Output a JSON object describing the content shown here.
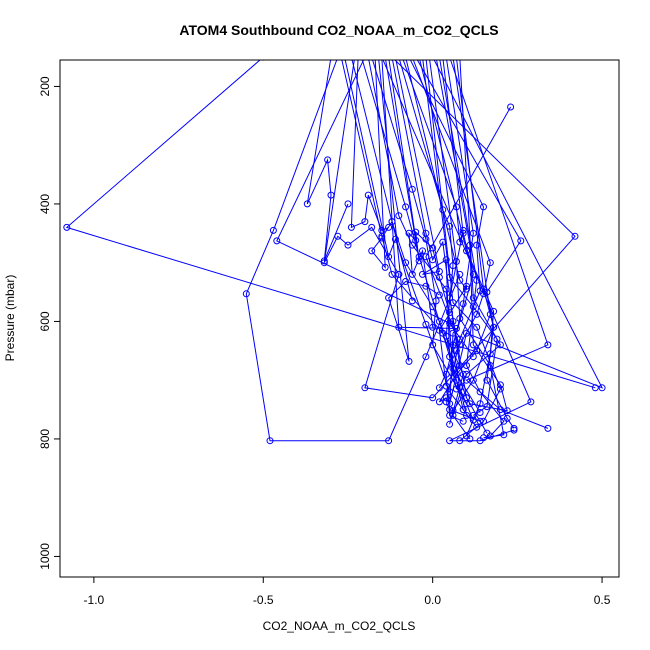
{
  "chart_data": {
    "type": "line",
    "title": "ATOM4 Southbound CO2_NOAA_m_CO2_QCLS",
    "xlabel": "CO2_NOAA_m_CO2_QCLS",
    "ylabel": "Pressure (mbar)",
    "xlim": [
      -1.1,
      0.55
    ],
    "ylim": [
      1035,
      155
    ],
    "y_reversed": true,
    "x_ticks": [
      -1.0,
      -0.5,
      0.0,
      0.5
    ],
    "x_tick_labels": [
      "-1.0",
      "-0.5",
      "0.0",
      "0.5"
    ],
    "y_ticks": [
      200,
      400,
      600,
      800,
      1000
    ],
    "y_tick_labels": [
      "200",
      "400",
      "600",
      "800",
      "1000"
    ],
    "grid": false,
    "series_color": "#0000ff",
    "series": [
      {
        "x": [
          -0.5,
          -1.08,
          0.48
        ],
        "y": [
          150,
          440,
          713
        ]
      },
      {
        "x": [
          -0.28,
          -0.47,
          -0.55,
          -0.48,
          -0.13,
          -0.02,
          0.08
        ],
        "y": [
          150,
          445,
          553,
          803,
          803,
          660,
          520
        ]
      },
      {
        "x": [
          -0.2,
          -0.46,
          0.05,
          0.12
        ],
        "y": [
          150,
          463,
          603,
          660
        ]
      },
      {
        "x": [
          0.0,
          0.5,
          0.1,
          0.05
        ],
        "y": [
          150,
          713,
          620,
          740
        ]
      },
      {
        "x": [
          -0.12,
          0.42,
          0.0,
          -0.2,
          -0.1
        ],
        "y": [
          150,
          455,
          730,
          713,
          520
        ]
      },
      {
        "x": [
          0.23,
          -0.02,
          0.08
        ],
        "y": [
          235,
          490,
          640
        ]
      },
      {
        "x": [
          0.05,
          0.34,
          0.1,
          0.2,
          0.34
        ],
        "y": [
          150,
          640,
          700,
          750,
          782
        ]
      },
      {
        "x": [
          -0.15,
          0.29,
          0.05,
          0.14,
          0.24
        ],
        "y": [
          150,
          737,
          803,
          803,
          785
        ]
      },
      {
        "x": [
          -0.3,
          -0.37,
          -0.31,
          -0.3,
          -0.32,
          -0.25
        ],
        "y": [
          150,
          400,
          325,
          385,
          497,
          400
        ]
      },
      {
        "x": [
          -0.23,
          -0.32,
          -0.28,
          -0.25,
          -0.18,
          -0.1
        ],
        "y": [
          150,
          500,
          455,
          470,
          440,
          520
        ]
      },
      {
        "x": [
          -0.22,
          -0.24,
          -0.2,
          -0.19,
          -0.15,
          -0.13
        ],
        "y": [
          150,
          440,
          430,
          385,
          445,
          440
        ]
      },
      {
        "x": [
          -0.17,
          -0.14,
          -0.18,
          -0.15,
          -0.12,
          -0.06
        ],
        "y": [
          150,
          508,
          480,
          458,
          430,
          565
        ]
      },
      {
        "x": [
          -0.16,
          -0.07,
          -0.13,
          -0.08,
          -0.02,
          0.02
        ],
        "y": [
          150,
          668,
          560,
          532,
          540,
          555
        ]
      },
      {
        "x": [
          -0.14,
          -0.05,
          -0.07,
          -0.06,
          -0.03,
          0.0
        ],
        "y": [
          150,
          462,
          450,
          520,
          480,
          610
        ]
      },
      {
        "x": [
          -0.13,
          -0.04,
          -0.05,
          0.0,
          0.02,
          0.05
        ],
        "y": [
          150,
          497,
          448,
          475,
          525,
          585
        ]
      },
      {
        "x": [
          -0.12,
          -0.02,
          0.0,
          0.03,
          0.06,
          0.08
        ],
        "y": [
          150,
          450,
          495,
          465,
          600,
          675
        ]
      },
      {
        "x": [
          -0.11,
          0.02,
          -0.03,
          0.04,
          0.05,
          0.07
        ],
        "y": [
          150,
          515,
          520,
          495,
          660,
          715
        ]
      },
      {
        "x": [
          -0.1,
          0.03,
          0.05,
          0.06,
          0.04,
          0.09
        ],
        "y": [
          150,
          410,
          438,
          505,
          625,
          750
        ]
      },
      {
        "x": [
          -0.09,
          0.07,
          0.08,
          0.09,
          0.05,
          0.1
        ],
        "y": [
          150,
          405,
          465,
          445,
          560,
          730
        ]
      },
      {
        "x": [
          -0.08,
          0.08,
          0.1,
          0.1,
          0.02,
          0.04
        ],
        "y": [
          150,
          530,
          545,
          540,
          615,
          710
        ]
      },
      {
        "x": [
          -0.07,
          0.15,
          0.13,
          0.14,
          0.08,
          0.04
        ],
        "y": [
          150,
          405,
          470,
          548,
          630,
          737
        ]
      },
      {
        "x": [
          -0.06,
          0.17,
          0.15,
          0.13,
          0.07,
          0.02
        ],
        "y": [
          150,
          500,
          553,
          588,
          650,
          713
        ]
      },
      {
        "x": [
          -0.05,
          0.26,
          0.16,
          0.18,
          0.12,
          0.06
        ],
        "y": [
          150,
          463,
          550,
          610,
          700,
          752
        ]
      },
      {
        "x": [
          -0.04,
          0.1,
          0.18,
          0.17,
          0.14,
          0.1
        ],
        "y": [
          150,
          480,
          583,
          655,
          740,
          795
        ]
      },
      {
        "x": [
          -0.03,
          0.05,
          0.12,
          0.19,
          0.16,
          0.12
        ],
        "y": [
          150,
          525,
          575,
          630,
          745,
          760
        ]
      },
      {
        "x": [
          -0.02,
          0.06,
          0.13,
          0.2,
          0.15,
          0.08
        ],
        "y": [
          150,
          568,
          610,
          715,
          770,
          803
        ]
      },
      {
        "x": [
          -0.01,
          0.07,
          0.08,
          0.17,
          0.21,
          0.15
        ],
        "y": [
          150,
          498,
          595,
          675,
          793,
          798
        ]
      },
      {
        "x": [
          0.01,
          0.11,
          0.12,
          0.2,
          0.22,
          0.11
        ],
        "y": [
          150,
          470,
          640,
          708,
          752,
          740
        ]
      },
      {
        "x": [
          0.02,
          0.13,
          0.1,
          0.14,
          0.21,
          0.17
        ],
        "y": [
          150,
          530,
          675,
          720,
          770,
          795
        ]
      },
      {
        "x": [
          0.03,
          0.09,
          0.12,
          0.06,
          0.08,
          0.1
        ],
        "y": [
          150,
          450,
          520,
          640,
          713,
          760
        ]
      },
      {
        "x": [
          0.04,
          0.12,
          0.09,
          0.04,
          0.05,
          0.09
        ],
        "y": [
          150,
          450,
          570,
          690,
          760,
          770
        ]
      },
      {
        "x": [
          0.06,
          0.17,
          0.13,
          0.07,
          0.02,
          0.04
        ],
        "y": [
          150,
          588,
          650,
          690,
          737,
          730
        ]
      },
      {
        "x": [
          -0.18,
          -0.06,
          -0.02,
          0.01,
          0.0,
          0.1
        ],
        "y": [
          150,
          375,
          460,
          565,
          640,
          740
        ]
      },
      {
        "x": [
          -0.19,
          -0.1,
          -0.06,
          0.04,
          0.06,
          0.14
        ],
        "y": [
          150,
          420,
          470,
          545,
          680,
          755
        ]
      },
      {
        "x": [
          -0.21,
          -0.08,
          -0.04,
          0.02,
          0.07,
          0.12
        ],
        "y": [
          150,
          405,
          490,
          600,
          700,
          768
        ]
      },
      {
        "x": [
          -0.24,
          -0.12,
          -0.08,
          0.0,
          0.09,
          0.05
        ],
        "y": [
          150,
          430,
          500,
          575,
          690,
          775
        ]
      },
      {
        "x": [
          -0.26,
          -0.13,
          -0.11,
          -0.02,
          0.05,
          0.13
        ],
        "y": [
          150,
          490,
          460,
          605,
          720,
          780
        ]
      },
      {
        "x": [
          -0.27,
          -0.15,
          -0.12,
          0.03,
          0.1,
          0.16
        ],
        "y": [
          150,
          455,
          520,
          620,
          730,
          790
        ]
      },
      {
        "x": [
          0.07,
          0.15,
          0.18,
          0.16,
          0.22,
          0.24
        ],
        "y": [
          150,
          545,
          610,
          700,
          765,
          782
        ]
      },
      {
        "x": [
          0.08,
          0.12,
          0.2,
          0.1,
          0.06,
          0.11
        ],
        "y": [
          150,
          560,
          640,
          690,
          760,
          800
        ]
      },
      {
        "x": [
          -0.15,
          -0.1,
          0.07,
          0.06,
          0.05,
          0.14
        ],
        "y": [
          150,
          610,
          612,
          620,
          750,
          770
        ]
      }
    ]
  }
}
